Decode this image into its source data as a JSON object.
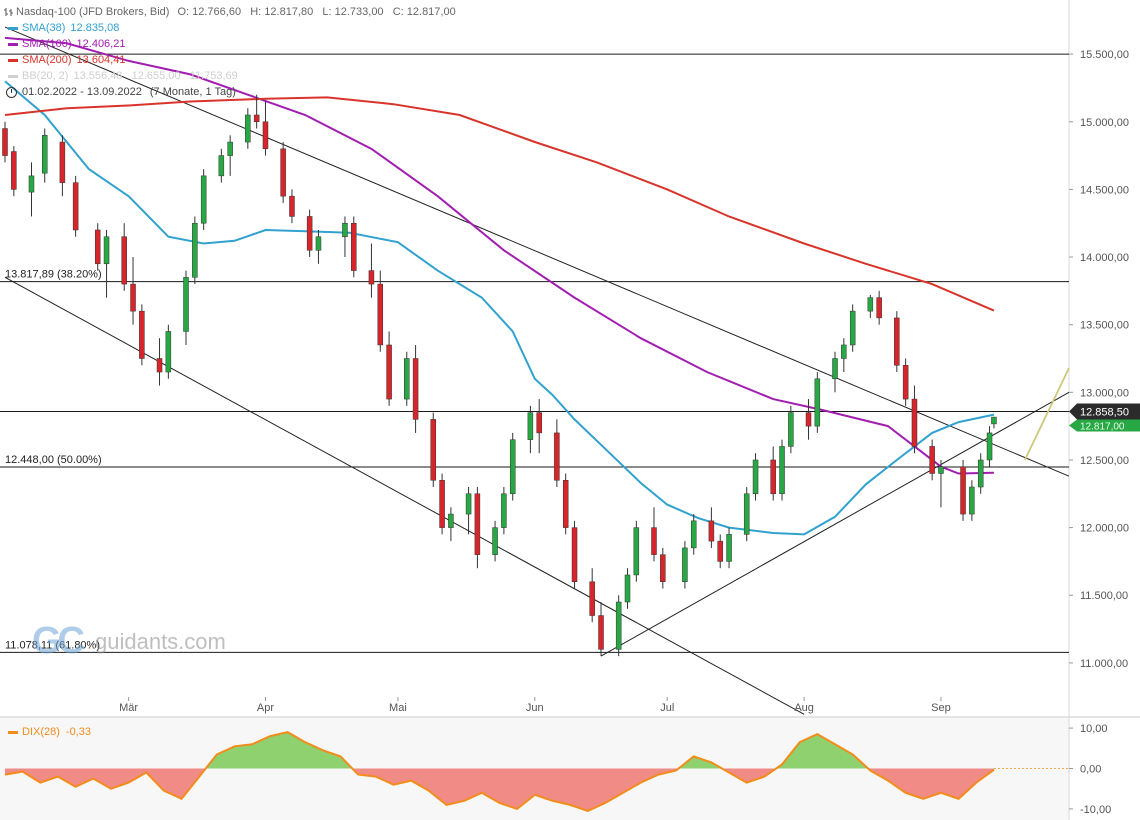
{
  "header": {
    "instrument": "Nasdaq-100 (JFD Brokers, Bid)",
    "ohlc": "O: 12.766,60   H: 12.817,80   L: 12.733,00   C: 12.817,00",
    "indicators": [
      {
        "label": "SMA(38)",
        "value": "12.835,08",
        "color": "#31a2cf"
      },
      {
        "label": "SMA(100)",
        "value": "12.406,21",
        "color": "#a21eb0"
      },
      {
        "label": "SMA(200)",
        "value": "13.604,41",
        "color": "#d9342b"
      },
      {
        "label": "BB(20, 2)",
        "value": "13.556,48   12.655,00   11.753,69",
        "color": "#d0d0d0"
      }
    ],
    "period": "01.02.2022 - 13.09.2022",
    "period_detail": "(7 Monate, 1 Tag)"
  },
  "watermark": {
    "logo": "GC",
    "text": "guidants.com"
  },
  "price_tag": {
    "value": "12.858,50",
    "sub": "12.817,00",
    "color": "#27a844"
  },
  "oscillator": {
    "label": "DIX(28)",
    "value": "-0,33",
    "color": "#f28c1b",
    "ticks": [
      "10,00",
      "0,00",
      "-10,00"
    ]
  },
  "chart_data": {
    "type": "candlestick",
    "x_range": [
      "2022-02-01",
      "2022-09-13"
    ],
    "ylim": [
      10600,
      15900
    ],
    "y_ticks": [
      {
        "v": 11000,
        "label": "11.000,00"
      },
      {
        "v": 11500,
        "label": "11.500,00"
      },
      {
        "v": 12000,
        "label": "12.000,00"
      },
      {
        "v": 12500,
        "label": "12.500,00"
      },
      {
        "v": 13000,
        "label": "13.000,00"
      },
      {
        "v": 13500,
        "label": "13.500,00"
      },
      {
        "v": 14000,
        "label": "14.000,00"
      },
      {
        "v": 14500,
        "label": "14.500,00"
      },
      {
        "v": 15000,
        "label": "15.000,00"
      },
      {
        "v": 15500,
        "label": "15.500,00"
      }
    ],
    "x_ticks": [
      {
        "date": "2022-03-01",
        "label": "Mär"
      },
      {
        "date": "2022-04-01",
        "label": "Apr"
      },
      {
        "date": "2022-05-01",
        "label": "Mai"
      },
      {
        "date": "2022-06-01",
        "label": "Jun"
      },
      {
        "date": "2022-07-01",
        "label": "Jul"
      },
      {
        "date": "2022-08-01",
        "label": "Aug"
      },
      {
        "date": "2022-09-01",
        "label": "Sep"
      }
    ],
    "grid": false,
    "horizontal_levels": [
      {
        "value": 15500,
        "label": ""
      },
      {
        "value": 13817.89,
        "label": "13.817,89 (38.20%)"
      },
      {
        "value": 12858.5,
        "label": ""
      },
      {
        "value": 12448.0,
        "label": "12.448,00 (50.00%)"
      },
      {
        "value": 11078.11,
        "label": "11.078,11 (61.80%)"
      }
    ],
    "trendlines": [
      {
        "name": "upper-falling",
        "from": [
          "2022-02-01",
          15700
        ],
        "to": [
          "2022-09-30",
          12380
        ],
        "color": "#222222"
      },
      {
        "name": "lower-falling",
        "from": [
          "2022-02-01",
          13850
        ],
        "to": [
          "2022-08-01",
          10620
        ],
        "color": "#222222"
      },
      {
        "name": "rising-support",
        "from": [
          "2022-06-16",
          11050
        ],
        "to": [
          "2022-09-30",
          13000
        ],
        "color": "#222222"
      },
      {
        "name": "projection",
        "from": [
          "2022-09-20",
          12500
        ],
        "to": [
          "2022-09-30",
          13180
        ],
        "color": "#cfc77a"
      }
    ],
    "sma_series": [
      {
        "name": "SMA(38)",
        "color": "#31a2cf",
        "points": [
          [
            "2022-02-01",
            15300
          ],
          [
            "2022-02-10",
            15050
          ],
          [
            "2022-02-20",
            14650
          ],
          [
            "2022-03-01",
            14450
          ],
          [
            "2022-03-10",
            14150
          ],
          [
            "2022-03-18",
            14100
          ],
          [
            "2022-03-25",
            14120
          ],
          [
            "2022-04-01",
            14200
          ],
          [
            "2022-04-10",
            14190
          ],
          [
            "2022-04-20",
            14180
          ],
          [
            "2022-05-01",
            14110
          ],
          [
            "2022-05-10",
            13900
          ],
          [
            "2022-05-20",
            13700
          ],
          [
            "2022-05-27",
            13450
          ],
          [
            "2022-06-01",
            13100
          ],
          [
            "2022-06-05",
            12980
          ],
          [
            "2022-06-10",
            12800
          ],
          [
            "2022-06-18",
            12550
          ],
          [
            "2022-06-25",
            12330
          ],
          [
            "2022-07-01",
            12170
          ],
          [
            "2022-07-08",
            12070
          ],
          [
            "2022-07-15",
            12000
          ],
          [
            "2022-07-25",
            11960
          ],
          [
            "2022-08-01",
            11950
          ],
          [
            "2022-08-08",
            12080
          ],
          [
            "2022-08-15",
            12320
          ],
          [
            "2022-08-22",
            12500
          ],
          [
            "2022-08-30",
            12700
          ],
          [
            "2022-09-05",
            12780
          ],
          [
            "2022-09-13",
            12835
          ]
        ]
      },
      {
        "name": "SMA(100)",
        "color": "#a21eb0",
        "points": [
          [
            "2022-02-01",
            15620
          ],
          [
            "2022-02-15",
            15580
          ],
          [
            "2022-03-01",
            15450
          ],
          [
            "2022-03-15",
            15350
          ],
          [
            "2022-03-28",
            15200
          ],
          [
            "2022-04-10",
            15050
          ],
          [
            "2022-04-25",
            14800
          ],
          [
            "2022-05-10",
            14450
          ],
          [
            "2022-05-25",
            14050
          ],
          [
            "2022-06-10",
            13700
          ],
          [
            "2022-06-25",
            13400
          ],
          [
            "2022-07-10",
            13150
          ],
          [
            "2022-07-25",
            12950
          ],
          [
            "2022-08-05",
            12870
          ],
          [
            "2022-08-20",
            12750
          ],
          [
            "2022-09-01",
            12450
          ],
          [
            "2022-09-05",
            12400
          ],
          [
            "2022-09-13",
            12406
          ]
        ]
      },
      {
        "name": "SMA(200)",
        "color": "#d9342b",
        "points": [
          [
            "2022-02-01",
            15050
          ],
          [
            "2022-02-15",
            15100
          ],
          [
            "2022-03-01",
            15120
          ],
          [
            "2022-03-15",
            15150
          ],
          [
            "2022-04-01",
            15170
          ],
          [
            "2022-04-15",
            15180
          ],
          [
            "2022-04-30",
            15130
          ],
          [
            "2022-05-15",
            15050
          ],
          [
            "2022-06-01",
            14850
          ],
          [
            "2022-06-15",
            14700
          ],
          [
            "2022-07-01",
            14500
          ],
          [
            "2022-07-15",
            14300
          ],
          [
            "2022-08-01",
            14100
          ],
          [
            "2022-08-15",
            13950
          ],
          [
            "2022-08-30",
            13800
          ],
          [
            "2022-09-13",
            13604
          ]
        ]
      }
    ],
    "candles": [
      [
        "2022-02-01",
        14950,
        15000,
        14700,
        14750
      ],
      [
        "2022-02-03",
        14780,
        14820,
        14450,
        14500
      ],
      [
        "2022-02-07",
        14480,
        14700,
        14300,
        14600
      ],
      [
        "2022-02-10",
        14620,
        14950,
        14550,
        14900
      ],
      [
        "2022-02-14",
        14850,
        14900,
        14450,
        14550
      ],
      [
        "2022-02-17",
        14550,
        14600,
        14150,
        14200
      ],
      [
        "2022-02-22",
        14200,
        14250,
        13900,
        13950
      ],
      [
        "2022-02-24",
        13950,
        14200,
        13700,
        14150
      ],
      [
        "2022-02-28",
        14150,
        14250,
        13750,
        13800
      ],
      [
        "2022-03-02",
        13800,
        14000,
        13500,
        13600
      ],
      [
        "2022-03-04",
        13600,
        13650,
        13200,
        13250
      ],
      [
        "2022-03-08",
        13250,
        13400,
        13050,
        13150
      ],
      [
        "2022-03-10",
        13150,
        13500,
        13100,
        13450
      ],
      [
        "2022-03-14",
        13450,
        13900,
        13350,
        13850
      ],
      [
        "2022-03-16",
        13850,
        14300,
        13800,
        14250
      ],
      [
        "2022-03-18",
        14250,
        14650,
        14200,
        14600
      ],
      [
        "2022-03-22",
        14600,
        14800,
        14550,
        14750
      ],
      [
        "2022-03-24",
        14750,
        14900,
        14600,
        14850
      ],
      [
        "2022-03-28",
        14850,
        15100,
        14800,
        15050
      ],
      [
        "2022-03-30",
        15050,
        15200,
        14950,
        15000
      ],
      [
        "2022-04-01",
        15000,
        15150,
        14750,
        14800
      ],
      [
        "2022-04-05",
        14800,
        14850,
        14400,
        14450
      ],
      [
        "2022-04-07",
        14450,
        14500,
        14250,
        14300
      ],
      [
        "2022-04-11",
        14300,
        14350,
        14000,
        14050
      ],
      [
        "2022-04-13",
        14050,
        14200,
        13950,
        14150
      ],
      [
        "2022-04-19",
        14150,
        14300,
        14000,
        14250
      ],
      [
        "2022-04-21",
        14250,
        14300,
        13850,
        13900
      ],
      [
        "2022-04-25",
        13900,
        14100,
        13700,
        13800
      ],
      [
        "2022-04-27",
        13800,
        13900,
        13300,
        13350
      ],
      [
        "2022-04-29",
        13350,
        13450,
        12900,
        12950
      ],
      [
        "2022-05-03",
        12950,
        13300,
        12900,
        13250
      ],
      [
        "2022-05-05",
        13250,
        13350,
        12700,
        12800
      ],
      [
        "2022-05-09",
        12800,
        12850,
        12300,
        12350
      ],
      [
        "2022-05-11",
        12350,
        12400,
        11950,
        12000
      ],
      [
        "2022-05-13",
        12000,
        12150,
        11900,
        12100
      ],
      [
        "2022-05-17",
        12100,
        12300,
        11950,
        12250
      ],
      [
        "2022-05-19",
        12250,
        12300,
        11700,
        11800
      ],
      [
        "2022-05-23",
        11800,
        12050,
        11750,
        12000
      ],
      [
        "2022-05-25",
        12000,
        12300,
        11950,
        12250
      ],
      [
        "2022-05-27",
        12250,
        12700,
        12200,
        12650
      ],
      [
        "2022-05-31",
        12650,
        12900,
        12550,
        12850
      ],
      [
        "2022-06-02",
        12850,
        12950,
        12550,
        12700
      ],
      [
        "2022-06-06",
        12700,
        12800,
        12300,
        12350
      ],
      [
        "2022-06-08",
        12350,
        12400,
        11950,
        12000
      ],
      [
        "2022-06-10",
        12000,
        12050,
        11550,
        11600
      ],
      [
        "2022-06-14",
        11600,
        11700,
        11300,
        11350
      ],
      [
        "2022-06-16",
        11350,
        11450,
        11050,
        11100
      ],
      [
        "2022-06-20",
        11100,
        11500,
        11050,
        11450
      ],
      [
        "2022-06-22",
        11450,
        11700,
        11400,
        11650
      ],
      [
        "2022-06-24",
        11650,
        12050,
        11600,
        12000
      ],
      [
        "2022-06-28",
        12000,
        12150,
        11750,
        11800
      ],
      [
        "2022-06-30",
        11800,
        11850,
        11550,
        11600
      ],
      [
        "2022-07-05",
        11600,
        11900,
        11550,
        11850
      ],
      [
        "2022-07-07",
        11850,
        12100,
        11800,
        12050
      ],
      [
        "2022-07-11",
        12050,
        12150,
        11850,
        11900
      ],
      [
        "2022-07-13",
        11900,
        11950,
        11700,
        11750
      ],
      [
        "2022-07-15",
        11750,
        12000,
        11700,
        11950
      ],
      [
        "2022-07-19",
        11950,
        12300,
        11900,
        12250
      ],
      [
        "2022-07-21",
        12250,
        12550,
        12200,
        12500
      ],
      [
        "2022-07-25",
        12500,
        12600,
        12200,
        12250
      ],
      [
        "2022-07-27",
        12250,
        12650,
        12200,
        12600
      ],
      [
        "2022-07-29",
        12600,
        12900,
        12550,
        12850
      ],
      [
        "2022-08-02",
        12850,
        12950,
        12650,
        12750
      ],
      [
        "2022-08-04",
        12750,
        13150,
        12700,
        13100
      ],
      [
        "2022-08-08",
        13100,
        13300,
        13000,
        13250
      ],
      [
        "2022-08-10",
        13250,
        13400,
        13150,
        13350
      ],
      [
        "2022-08-12",
        13350,
        13650,
        13300,
        13600
      ],
      [
        "2022-08-16",
        13600,
        13720,
        13550,
        13700
      ],
      [
        "2022-08-18",
        13700,
        13750,
        13500,
        13550
      ],
      [
        "2022-08-22",
        13550,
        13600,
        13150,
        13200
      ],
      [
        "2022-08-24",
        13200,
        13250,
        12900,
        12950
      ],
      [
        "2022-08-26",
        12950,
        13050,
        12550,
        12600
      ],
      [
        "2022-08-30",
        12600,
        12650,
        12350,
        12400
      ],
      [
        "2022-09-01",
        12400,
        12500,
        12150,
        12450
      ],
      [
        "2022-09-06",
        12450,
        12500,
        12050,
        12100
      ],
      [
        "2022-09-08",
        12100,
        12350,
        12050,
        12300
      ],
      [
        "2022-09-10",
        12300,
        12550,
        12250,
        12500
      ],
      [
        "2022-09-12",
        12500,
        12750,
        12450,
        12700
      ],
      [
        "2022-09-13",
        12766.6,
        12817.8,
        12733,
        12817
      ]
    ],
    "oscillator_series": {
      "name": "DIX(28)",
      "ylim": [
        -12,
        12
      ],
      "points": [
        [
          "2022-02-01",
          -1.5
        ],
        [
          "2022-02-05",
          -0.8
        ],
        [
          "2022-02-09",
          -3.5
        ],
        [
          "2022-02-13",
          -2.0
        ],
        [
          "2022-02-17",
          -4.5
        ],
        [
          "2022-02-21",
          -2.5
        ],
        [
          "2022-02-25",
          -5.0
        ],
        [
          "2022-03-01",
          -3.5
        ],
        [
          "2022-03-05",
          -1.0
        ],
        [
          "2022-03-09",
          -5.5
        ],
        [
          "2022-03-13",
          -7.5
        ],
        [
          "2022-03-17",
          -2.0
        ],
        [
          "2022-03-21",
          3.5
        ],
        [
          "2022-03-25",
          5.5
        ],
        [
          "2022-03-29",
          6.0
        ],
        [
          "2022-04-02",
          8.0
        ],
        [
          "2022-04-06",
          9.0
        ],
        [
          "2022-04-10",
          6.5
        ],
        [
          "2022-04-14",
          4.5
        ],
        [
          "2022-04-18",
          3.0
        ],
        [
          "2022-04-22",
          -1.5
        ],
        [
          "2022-04-26",
          -2.0
        ],
        [
          "2022-04-30",
          -4.0
        ],
        [
          "2022-05-04",
          -3.0
        ],
        [
          "2022-05-08",
          -5.5
        ],
        [
          "2022-05-12",
          -9.0
        ],
        [
          "2022-05-16",
          -8.0
        ],
        [
          "2022-05-20",
          -6.0
        ],
        [
          "2022-05-24",
          -8.5
        ],
        [
          "2022-05-28",
          -10.0
        ],
        [
          "2022-06-01",
          -6.5
        ],
        [
          "2022-06-05",
          -8.0
        ],
        [
          "2022-06-09",
          -9.0
        ],
        [
          "2022-06-13",
          -10.5
        ],
        [
          "2022-06-17",
          -8.5
        ],
        [
          "2022-06-21",
          -6.0
        ],
        [
          "2022-06-25",
          -3.5
        ],
        [
          "2022-06-29",
          -1.5
        ],
        [
          "2022-07-03",
          -0.5
        ],
        [
          "2022-07-07",
          3.0
        ],
        [
          "2022-07-11",
          1.5
        ],
        [
          "2022-07-15",
          -1.0
        ],
        [
          "2022-07-19",
          -3.5
        ],
        [
          "2022-07-23",
          -2.0
        ],
        [
          "2022-07-27",
          1.0
        ],
        [
          "2022-07-31",
          6.5
        ],
        [
          "2022-08-04",
          8.5
        ],
        [
          "2022-08-08",
          6.0
        ],
        [
          "2022-08-12",
          3.5
        ],
        [
          "2022-08-16",
          -0.5
        ],
        [
          "2022-08-20",
          -3.0
        ],
        [
          "2022-08-24",
          -6.0
        ],
        [
          "2022-08-28",
          -7.5
        ],
        [
          "2022-09-01",
          -6.0
        ],
        [
          "2022-09-05",
          -7.5
        ],
        [
          "2022-09-09",
          -3.5
        ],
        [
          "2022-09-13",
          -0.33
        ]
      ]
    }
  }
}
